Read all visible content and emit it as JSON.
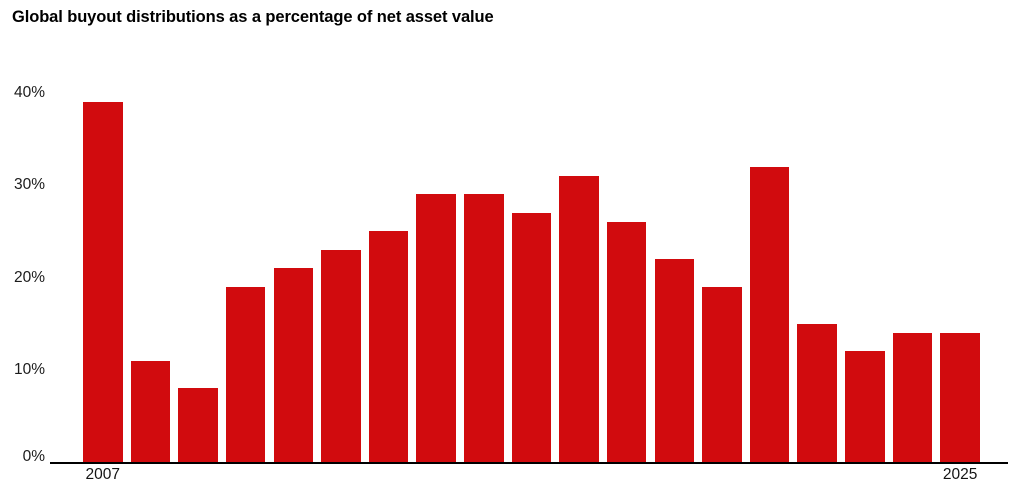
{
  "chart_data": {
    "type": "bar",
    "title": "Global buyout distributions as a percentage of net asset value",
    "categories": [
      "2007",
      "2008",
      "2009",
      "2010",
      "2011",
      "2012",
      "2013",
      "2014",
      "2015",
      "2016",
      "2017",
      "2018",
      "2019",
      "2020",
      "2021",
      "2022",
      "2023",
      "2024",
      "2025"
    ],
    "values": [
      39,
      11,
      8,
      19,
      21,
      23,
      25,
      29,
      29,
      27,
      31,
      26,
      22,
      19,
      32,
      15,
      12,
      14,
      14
    ],
    "unit": "%",
    "xlabel": "",
    "ylabel": "",
    "ylim": [
      0,
      40
    ],
    "yticks": [
      0,
      10,
      20,
      30,
      40
    ],
    "ytick_labels": [
      "0%",
      "10%",
      "20%",
      "30%",
      "40%"
    ],
    "xtick_labels": [
      "2007",
      "2025"
    ],
    "bar_color": "#d10b0e",
    "axis_line_color": "#000000",
    "tick_text_color": "#1c1c1c",
    "title_color": "#000000",
    "background_color": "#ffffff",
    "grid": false,
    "legend": false
  }
}
